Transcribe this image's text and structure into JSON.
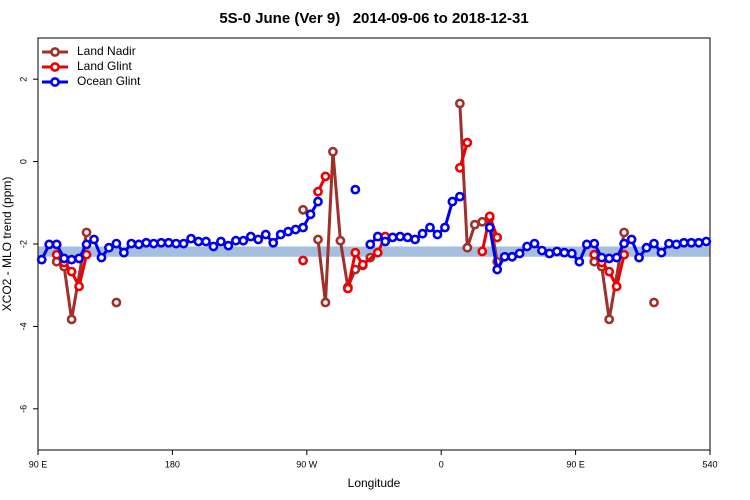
{
  "chart_data": {
    "type": "line",
    "title": "5S-0 June (Ver 9)   2014-09-06 to 2018-12-31",
    "xlabel": "Longitude",
    "ylabel": "XCO2 - MLO trend (ppm)",
    "xlim": [
      90,
      540
    ],
    "xticks": [
      {
        "value": 90,
        "label": "90 E"
      },
      180,
      {
        "value": 270,
        "label": "90 W"
      },
      {
        "value": 360,
        "label": "0"
      },
      {
        "value": 450,
        "label": "90 E"
      },
      540
    ],
    "ylim": [
      -7,
      3
    ],
    "yticks": [
      -6,
      -4,
      -2,
      0,
      2
    ],
    "legend": "top-left",
    "reference_band": [
      -2.31,
      -2.06
    ],
    "reference_band_color": "#a7bfdf",
    "series": [
      {
        "name": "Land Nadir",
        "color": "#a0302c",
        "x": [
          102.5,
          107.5,
          112.5,
          122.5,
          132.5,
          142.5,
          192.5,
          267.5,
          272.5,
          277.5,
          282.5,
          287.5,
          292.5,
          297.5,
          302.5,
          307.5,
          312.5,
          342.5,
          372.5,
          377.5,
          382.5,
          387.5,
          392.5,
          397.5,
          432.5,
          462.5,
          467.5,
          472.5,
          482.5,
          492.5,
          502.5
        ],
        "values": [
          -2.43,
          -2.55,
          -3.83,
          -1.72,
          null,
          -3.42,
          null,
          -1.17,
          null,
          -1.89,
          -3.42,
          0.24,
          -1.92,
          -3.05,
          -2.62,
          -2.52,
          -2.33,
          null,
          1.41,
          -2.09,
          -1.53,
          -1.46,
          -1.36,
          -2.43,
          null,
          -2.43,
          -2.55,
          -3.83,
          -1.72,
          null,
          -3.42
        ]
      },
      {
        "name": "Land Glint",
        "color": "#ee0000",
        "x": [
          102.5,
          107.5,
          112.5,
          117.5,
          122.5,
          200,
          267.5,
          272.5,
          277.5,
          282.5,
          290,
          297.5,
          302.5,
          307.5,
          317.5,
          322.5,
          340,
          372.5,
          377.5,
          380,
          387.5,
          392.5,
          397.5,
          430,
          462.5,
          467.5,
          472.5,
          477.5,
          482.5
        ],
        "values": [
          -2.26,
          -2.45,
          -2.67,
          -3.03,
          -2.26,
          null,
          -2.4,
          null,
          -0.73,
          -0.36,
          null,
          -3.08,
          -2.21,
          -2.5,
          -2.21,
          -1.82,
          null,
          -0.15,
          0.46,
          null,
          -2.18,
          -1.33,
          -1.84,
          null,
          -2.26,
          -2.45,
          -2.67,
          -3.03,
          -2.26
        ]
      },
      {
        "name": "Ocean Glint",
        "color": "#0000ee",
        "x": [
          92.5,
          97.5,
          102.5,
          107.5,
          112.5,
          117.5,
          122.5,
          127.5,
          132.5,
          137.5,
          142.5,
          147.5,
          152.5,
          157.5,
          162.5,
          167.5,
          172.5,
          177.5,
          182.5,
          187.5,
          192.5,
          197.5,
          202.5,
          207.5,
          212.5,
          217.5,
          222.5,
          227.5,
          232.5,
          237.5,
          242.5,
          247.5,
          252.5,
          257.5,
          262.5,
          267.5,
          272.5,
          277.5,
          282.5,
          302.5,
          307.5,
          312.5,
          317.5,
          322.5,
          327.5,
          332.5,
          337.5,
          342.5,
          347.5,
          352.5,
          357.5,
          362.5,
          367.5,
          372.5,
          377.5,
          392.5,
          397.5,
          402.5,
          407.5,
          412.5,
          417.5,
          422.5,
          427.5,
          432.5,
          437.5,
          442.5,
          447.5,
          452.5,
          457.5,
          462.5,
          467.5,
          472.5,
          477.5,
          482.5,
          487.5,
          492.5,
          497.5,
          502.5,
          507.5,
          512.5,
          517.5,
          522.5,
          527.5,
          532.5,
          537.5
        ],
        "values": [
          -2.38,
          -2.01,
          -2.01,
          -2.35,
          -2.38,
          -2.35,
          -2.01,
          -1.89,
          -2.33,
          -2.09,
          -1.99,
          -2.21,
          -1.99,
          -2.01,
          -1.97,
          -1.99,
          -1.97,
          -1.97,
          -1.99,
          -1.99,
          -1.87,
          -1.94,
          -1.94,
          -2.06,
          -1.94,
          -2.04,
          -1.92,
          -1.92,
          -1.82,
          -1.89,
          -1.77,
          -1.97,
          -1.77,
          -1.7,
          -1.65,
          -1.6,
          -1.28,
          -0.97,
          null,
          -0.68,
          null,
          -2.01,
          -1.82,
          -1.94,
          -1.84,
          -1.82,
          -1.84,
          -1.89,
          -1.75,
          -1.6,
          -1.77,
          -1.6,
          -0.97,
          -0.85,
          null,
          -1.6,
          -2.62,
          -2.31,
          -2.31,
          -2.23,
          -2.06,
          -1.99,
          -2.16,
          -2.23,
          -2.18,
          -2.21,
          -2.23,
          -2.43,
          -2.01,
          -1.99,
          -2.33,
          -2.35,
          -2.33,
          -1.99,
          -1.89,
          -2.33,
          -2.09,
          -1.99,
          -2.21,
          -1.99,
          -2.01,
          -1.97,
          -1.97,
          -1.97,
          -1.94
        ]
      }
    ]
  }
}
